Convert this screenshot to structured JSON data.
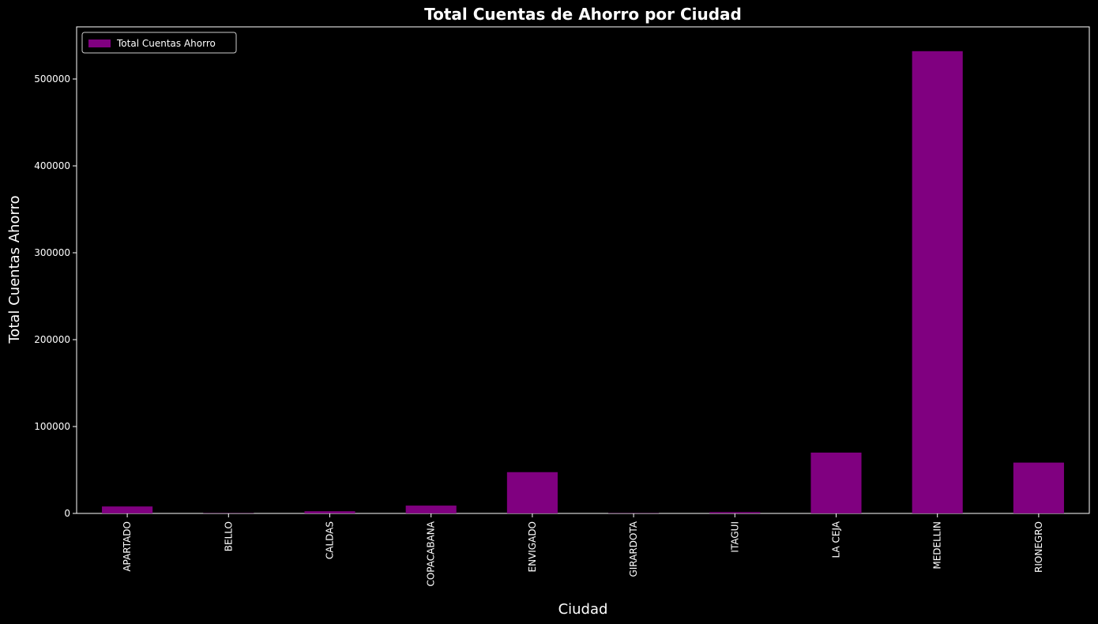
{
  "chart_data": {
    "type": "bar",
    "title": "Total Cuentas de Ahorro por Ciudad",
    "xlabel": "Ciudad",
    "ylabel": "Total Cuentas Ahorro",
    "categories": [
      "APARTADO",
      "BELLO",
      "CALDAS",
      "COPACABANA",
      "ENVIGADO",
      "GIRARDOTA",
      "ITAGUI",
      "LA CEJA",
      "MEDELLIN",
      "RIONEGRO"
    ],
    "series": [
      {
        "name": "Total Cuentas Ahorro",
        "values": [
          8000,
          300,
          2500,
          9000,
          47500,
          300,
          1500,
          70000,
          532000,
          58500
        ],
        "color": "#800080"
      }
    ],
    "ylim": [
      0,
      560000
    ],
    "yticks": [
      0,
      100000,
      200000,
      300000,
      400000,
      500000
    ],
    "ytick_labels": [
      "0",
      "100000",
      "200000",
      "300000",
      "400000",
      "500000"
    ],
    "grid": false,
    "legend_position": "top-left",
    "background": "#000000",
    "text_color": "#ffffff",
    "x_tick_rotation": "vertical"
  }
}
